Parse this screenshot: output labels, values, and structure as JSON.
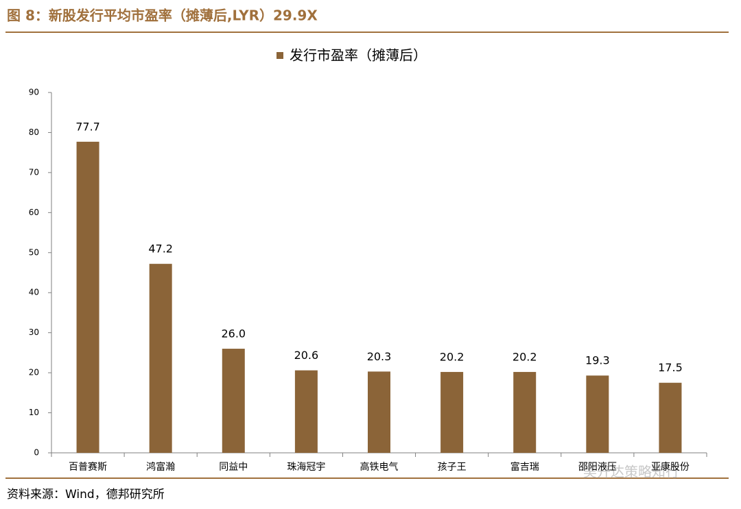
{
  "header": {
    "title": "图 8：新股发行平均市盈率（摊薄后,LYR）29.9X"
  },
  "chart_data": {
    "type": "bar",
    "categories": [
      "百普赛斯",
      "鸿富瀚",
      "同益中",
      "珠海冠宇",
      "高铁电气",
      "孩子王",
      "富吉瑞",
      "邵阳液压",
      "亚康股份"
    ],
    "series": [
      {
        "name": "发行市盈率（摊薄后）",
        "color": "#8b6438",
        "values": [
          77.7,
          47.2,
          26.0,
          20.6,
          20.3,
          20.2,
          20.2,
          19.3,
          17.5
        ],
        "value_labels": [
          "77.7",
          "47.2",
          "26.0",
          "20.6",
          "20.3",
          "20.2",
          "20.2",
          "19.3",
          "17.5"
        ]
      }
    ],
    "ylim": [
      0,
      90
    ],
    "yticks": [
      0,
      10,
      20,
      30,
      40,
      50,
      60,
      70,
      80,
      90
    ],
    "grid": false,
    "legend": "top"
  },
  "footer": {
    "source": "资料来源：Wind，德邦研究所",
    "watermark": "吴开达策略知行"
  }
}
